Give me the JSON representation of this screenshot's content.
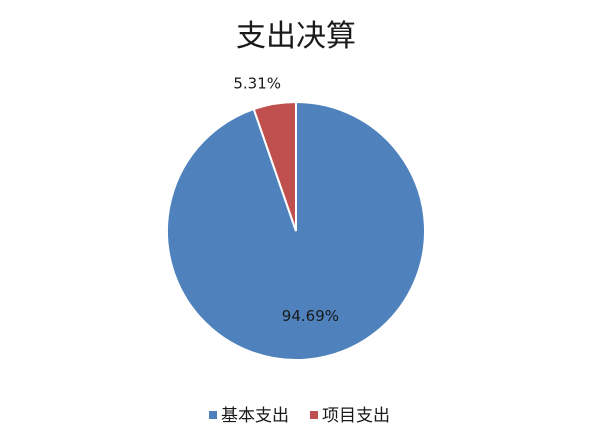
{
  "chart_data": {
    "type": "pie",
    "title": "支出决算",
    "categories": [
      "基本支出",
      "项目支出"
    ],
    "values": [
      94.69,
      5.31
    ],
    "labels": [
      "94.69%",
      "5.31%"
    ],
    "colors": [
      "#4f81bd",
      "#c0504d"
    ],
    "legend_position": "bottom"
  }
}
